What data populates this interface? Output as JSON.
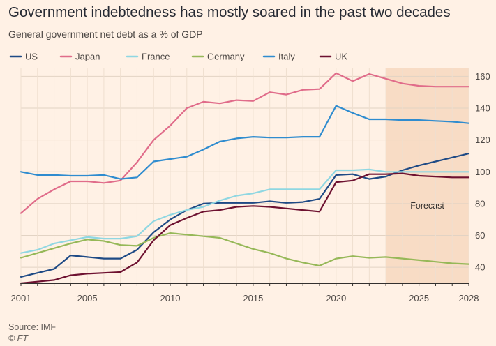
{
  "header": {
    "title": "Government indebtedness has mostly soared in the past two decades",
    "subtitle": "General government net debt as a % of GDP"
  },
  "footer": {
    "source": "Source: IMF",
    "logo": "© FT"
  },
  "chart_data": {
    "type": "line",
    "title": "Government indebtedness has mostly soared in the past two decades",
    "subtitle": "General government net debt as a % of GDP",
    "xlabel": "",
    "ylabel": "",
    "x": [
      2001,
      2002,
      2003,
      2004,
      2005,
      2006,
      2007,
      2008,
      2009,
      2010,
      2011,
      2012,
      2013,
      2014,
      2015,
      2016,
      2017,
      2018,
      2019,
      2020,
      2021,
      2022,
      2023,
      2024,
      2025,
      2026,
      2027,
      2028
    ],
    "xlim": [
      2001,
      2028
    ],
    "ylim": [
      30,
      165
    ],
    "x_ticks": [
      2001,
      2005,
      2010,
      2015,
      2020,
      2025,
      2028
    ],
    "y_ticks": [
      40,
      60,
      80,
      100,
      120,
      140,
      160
    ],
    "grid": true,
    "legend_position": "top",
    "forecast": {
      "label": "Forecast",
      "start": 2023,
      "end": 2028,
      "color": "#f8dcc5"
    },
    "series": [
      {
        "name": "US",
        "color": "#1e4a85",
        "values": [
          34,
          36.5,
          39,
          47.5,
          46.5,
          45.5,
          45.5,
          51,
          62,
          70,
          76,
          80,
          80.5,
          80.5,
          80.5,
          81.5,
          80.5,
          81,
          83,
          98,
          98.5,
          95.5,
          97,
          101,
          104,
          106.5,
          109,
          111.5
        ]
      },
      {
        "name": "Japan",
        "color": "#e06c8a",
        "values": [
          74,
          83,
          89,
          94,
          94,
          93,
          94.5,
          106,
          120,
          129,
          140,
          144,
          143,
          145,
          144.5,
          150,
          148.5,
          151.5,
          152,
          162,
          157,
          161.5,
          158.5,
          155.5,
          154,
          153.5,
          153.5,
          153.5
        ]
      },
      {
        "name": "France",
        "color": "#8fd7e2",
        "values": [
          49,
          51,
          55,
          57,
          59,
          58,
          58,
          59.5,
          69,
          73,
          76,
          78,
          82,
          85,
          86.5,
          89,
          89,
          89,
          89,
          101,
          101,
          101.5,
          100,
          100,
          100,
          100,
          100,
          100
        ]
      },
      {
        "name": "Germany",
        "color": "#96b858",
        "values": [
          46,
          49,
          52,
          55,
          57.5,
          56.5,
          54,
          53.5,
          58.5,
          61.5,
          60.5,
          59.5,
          58.5,
          55,
          51.5,
          49,
          45.5,
          43,
          41,
          45.5,
          47,
          46,
          46.5,
          45.5,
          44.5,
          43.5,
          42.5,
          42
        ]
      },
      {
        "name": "Italy",
        "color": "#2f8ccf",
        "values": [
          100,
          98,
          98,
          97.5,
          97.5,
          98,
          95.5,
          96.5,
          106.5,
          108,
          109.5,
          114,
          119,
          121,
          122,
          121.5,
          121.5,
          122,
          122,
          141.5,
          137,
          133,
          133,
          132.5,
          132.5,
          132,
          131.5,
          130.5
        ]
      },
      {
        "name": "UK",
        "color": "#6d1130",
        "values": [
          30,
          31,
          32,
          35,
          36,
          36.5,
          37,
          43,
          57,
          66.5,
          71,
          75,
          76,
          78,
          78.5,
          78,
          77,
          76,
          75,
          93.5,
          94.5,
          98.5,
          98.5,
          99,
          97.5,
          97,
          96.5,
          96.5
        ]
      }
    ]
  }
}
